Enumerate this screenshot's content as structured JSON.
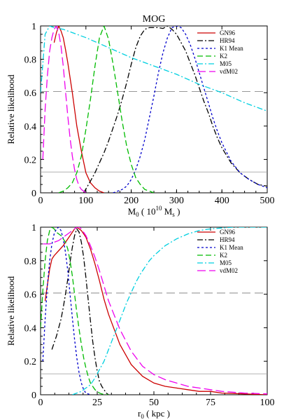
{
  "chart_data": [
    {
      "type": "line",
      "title": "MOG",
      "xlabel_main": "M",
      "xlabel_sub": "0",
      "xlabel_rest": " ( 10",
      "xlabel_sup": "10",
      "xlabel_tail": " M",
      "xlabel_tail_sub": "s",
      "xlabel_close": " )",
      "ylabel": "Relative likelihood",
      "xlim": [
        0,
        500
      ],
      "ylim": [
        0,
        1
      ],
      "xticks": [
        "0",
        "100",
        "200",
        "300",
        "400",
        "500"
      ],
      "yticks": [
        "0",
        "0.2",
        "0.4",
        "0.6",
        "0.8",
        "1"
      ],
      "legend_position": "top-right",
      "reference_lines": [
        0.607,
        0.125
      ],
      "series": [
        {
          "name": "GN96",
          "color": "#cc0000",
          "dash": "",
          "x": [
            30,
            35,
            40,
            45,
            50,
            55,
            60,
            70,
            80,
            90,
            100,
            110,
            120,
            130,
            140
          ],
          "y": [
            0.9,
            0.96,
            1.0,
            0.97,
            0.93,
            0.86,
            0.78,
            0.6,
            0.4,
            0.25,
            0.12,
            0.06,
            0.03,
            0.01,
            0.0
          ]
        },
        {
          "name": "HR94",
          "color": "#000000",
          "dash": "8,3,2,3",
          "x": [
            95,
            110,
            120,
            130,
            140,
            150,
            160,
            170,
            180,
            190,
            200,
            210,
            220,
            230,
            240,
            250,
            260,
            270,
            280,
            290,
            300,
            310,
            320,
            330,
            340,
            350,
            360,
            370,
            380,
            390,
            400,
            420,
            440,
            460,
            480,
            500
          ],
          "y": [
            0.0,
            0.07,
            0.12,
            0.18,
            0.24,
            0.31,
            0.39,
            0.47,
            0.56,
            0.66,
            0.77,
            0.87,
            0.94,
            0.98,
            0.99,
            0.99,
            0.99,
            0.985,
            1.0,
            0.98,
            0.95,
            0.9,
            0.85,
            0.78,
            0.71,
            0.63,
            0.55,
            0.48,
            0.4,
            0.33,
            0.27,
            0.18,
            0.12,
            0.08,
            0.05,
            0.04
          ]
        },
        {
          "name": "K1 Mean",
          "color": "#0000cc",
          "dash": "3,3",
          "x": [
            160,
            170,
            180,
            190,
            200,
            210,
            220,
            230,
            240,
            250,
            260,
            270,
            280,
            290,
            300,
            310,
            320,
            330,
            340,
            350,
            360,
            370,
            380,
            390,
            400,
            420,
            440,
            460,
            480,
            500
          ],
          "y": [
            0.0,
            0.01,
            0.02,
            0.04,
            0.08,
            0.14,
            0.22,
            0.32,
            0.45,
            0.58,
            0.72,
            0.84,
            0.93,
            0.99,
            1.0,
            0.99,
            0.95,
            0.89,
            0.81,
            0.72,
            0.63,
            0.54,
            0.45,
            0.37,
            0.3,
            0.19,
            0.12,
            0.08,
            0.05,
            0.03
          ]
        },
        {
          "name": "K2",
          "color": "#00bb00",
          "dash": "8,4",
          "x": [
            40,
            50,
            60,
            70,
            80,
            90,
            100,
            110,
            120,
            130,
            140,
            150,
            160,
            170,
            180,
            190,
            200,
            210,
            220,
            230,
            240,
            250
          ],
          "y": [
            0.0,
            0.01,
            0.03,
            0.06,
            0.12,
            0.22,
            0.38,
            0.56,
            0.76,
            0.93,
            1.0,
            0.92,
            0.77,
            0.6,
            0.43,
            0.28,
            0.17,
            0.09,
            0.05,
            0.02,
            0.01,
            0.0
          ]
        },
        {
          "name": "M05",
          "color": "#00d0e0",
          "dash": "8,3,2,3",
          "x": [
            0,
            10,
            20,
            30,
            50,
            100,
            150,
            200,
            250,
            300,
            350,
            400,
            450,
            500
          ],
          "y": [
            0.6,
            0.95,
            1.0,
            0.99,
            0.98,
            0.93,
            0.87,
            0.81,
            0.76,
            0.71,
            0.65,
            0.6,
            0.54,
            0.49
          ]
        },
        {
          "name": "vdM02",
          "color": "#ee00ee",
          "dash": "12,5",
          "x": [
            5,
            10,
            15,
            20,
            25,
            30,
            35,
            40,
            45,
            50,
            55,
            60,
            65,
            70,
            75,
            80,
            85,
            90,
            100
          ],
          "y": [
            0.2,
            0.5,
            0.7,
            0.85,
            0.93,
            0.98,
            1.0,
            0.96,
            0.88,
            0.76,
            0.61,
            0.46,
            0.33,
            0.22,
            0.14,
            0.08,
            0.04,
            0.02,
            0.0
          ]
        }
      ]
    },
    {
      "type": "line",
      "title": "",
      "xlabel_main": "r",
      "xlabel_sub": "0",
      "xlabel_rest": " ( kpc )",
      "ylabel": "Relative likelihood",
      "xlim": [
        0,
        100
      ],
      "ylim": [
        0,
        1
      ],
      "xticks": [
        "0",
        "25",
        "50",
        "75",
        "100"
      ],
      "yticks": [
        "0",
        "0.2",
        "0.4",
        "0.6",
        "0.8",
        "1"
      ],
      "legend_position": "top-right",
      "reference_lines": [
        0.607,
        0.125
      ],
      "series": [
        {
          "name": "GN96",
          "color": "#cc0000",
          "dash": "",
          "x": [
            2,
            4,
            5,
            6,
            8,
            10,
            12,
            14,
            15,
            16,
            18,
            20,
            22,
            24,
            26,
            28,
            30,
            35,
            40,
            45,
            50,
            55,
            60,
            65,
            70,
            75,
            80,
            90,
            100
          ],
          "y": [
            0.56,
            0.75,
            0.81,
            0.83,
            0.86,
            0.89,
            0.93,
            0.97,
            0.99,
            1.0,
            0.98,
            0.94,
            0.87,
            0.78,
            0.68,
            0.57,
            0.48,
            0.3,
            0.18,
            0.11,
            0.07,
            0.05,
            0.04,
            0.03,
            0.02,
            0.02,
            0.01,
            0.005,
            0.0
          ]
        },
        {
          "name": "HR94",
          "color": "#000000",
          "dash": "8,3,2,3",
          "x": [
            5,
            6,
            7,
            8,
            9,
            10,
            11,
            12,
            13,
            14,
            15,
            16,
            17,
            18,
            19,
            20,
            21,
            22,
            23,
            24,
            25,
            26,
            27,
            28,
            29,
            30
          ],
          "y": [
            0.27,
            0.31,
            0.35,
            0.4,
            0.45,
            0.52,
            0.6,
            0.69,
            0.79,
            0.88,
            0.95,
            0.99,
            0.97,
            0.91,
            0.82,
            0.7,
            0.57,
            0.44,
            0.32,
            0.22,
            0.14,
            0.08,
            0.05,
            0.03,
            0.01,
            0.0
          ]
        },
        {
          "name": "K1 Mean",
          "color": "#0000cc",
          "dash": "3,3",
          "x": [
            1,
            2,
            3,
            4,
            5,
            6,
            7,
            8,
            9,
            10,
            11,
            12,
            13,
            14,
            15,
            16,
            17,
            18,
            19,
            20,
            21,
            22
          ],
          "y": [
            0.2,
            0.45,
            0.65,
            0.8,
            0.9,
            0.96,
            0.99,
            1.0,
            0.98,
            0.93,
            0.85,
            0.74,
            0.6,
            0.46,
            0.33,
            0.22,
            0.13,
            0.07,
            0.03,
            0.01,
            0.005,
            0.0
          ]
        },
        {
          "name": "K2",
          "color": "#00bb00",
          "dash": "8,4",
          "x": [
            0,
            1,
            2,
            3,
            4,
            5,
            6,
            7,
            8,
            9,
            10,
            11,
            12,
            13,
            14,
            15,
            16,
            17,
            18,
            19,
            20,
            21,
            22,
            23,
            24,
            25,
            26,
            27,
            28,
            29,
            30
          ],
          "y": [
            0.4,
            0.62,
            0.8,
            0.92,
            0.98,
            1.0,
            0.99,
            0.97,
            0.96,
            0.95,
            0.93,
            0.91,
            0.87,
            0.8,
            0.71,
            0.6,
            0.49,
            0.39,
            0.3,
            0.22,
            0.16,
            0.11,
            0.07,
            0.05,
            0.03,
            0.02,
            0.01,
            0.005,
            0.002,
            0.001,
            0.0
          ]
        },
        {
          "name": "M05",
          "color": "#00d0e0",
          "dash": "8,3,2,3",
          "x": [
            14,
            16,
            18,
            20,
            22,
            24,
            26,
            28,
            30,
            32,
            34,
            36,
            38,
            40,
            42,
            44,
            46,
            48,
            50,
            55,
            60,
            65,
            70,
            75,
            80,
            85,
            90,
            95,
            100
          ],
          "y": [
            0.0,
            0.01,
            0.02,
            0.04,
            0.06,
            0.1,
            0.15,
            0.2,
            0.27,
            0.34,
            0.41,
            0.48,
            0.55,
            0.61,
            0.67,
            0.72,
            0.76,
            0.8,
            0.83,
            0.89,
            0.93,
            0.96,
            0.98,
            0.99,
            0.995,
            1.0,
            1.0,
            1.0,
            1.0
          ]
        },
        {
          "name": "vdM02",
          "color": "#ee00ee",
          "dash": "12,5",
          "x": [
            1,
            2,
            4,
            6,
            8,
            10,
            12,
            14,
            15,
            16,
            17,
            18,
            20,
            22,
            24,
            26,
            28,
            30,
            35,
            40,
            45,
            50,
            55,
            60,
            65,
            70,
            75,
            80,
            90,
            100
          ],
          "y": [
            0.9,
            0.9,
            0.9,
            0.91,
            0.92,
            0.94,
            0.96,
            0.98,
            0.99,
            1.0,
            1.0,
            0.99,
            0.95,
            0.89,
            0.82,
            0.74,
            0.65,
            0.56,
            0.39,
            0.26,
            0.17,
            0.12,
            0.09,
            0.07,
            0.05,
            0.04,
            0.03,
            0.02,
            0.01,
            0.005
          ]
        }
      ]
    }
  ]
}
